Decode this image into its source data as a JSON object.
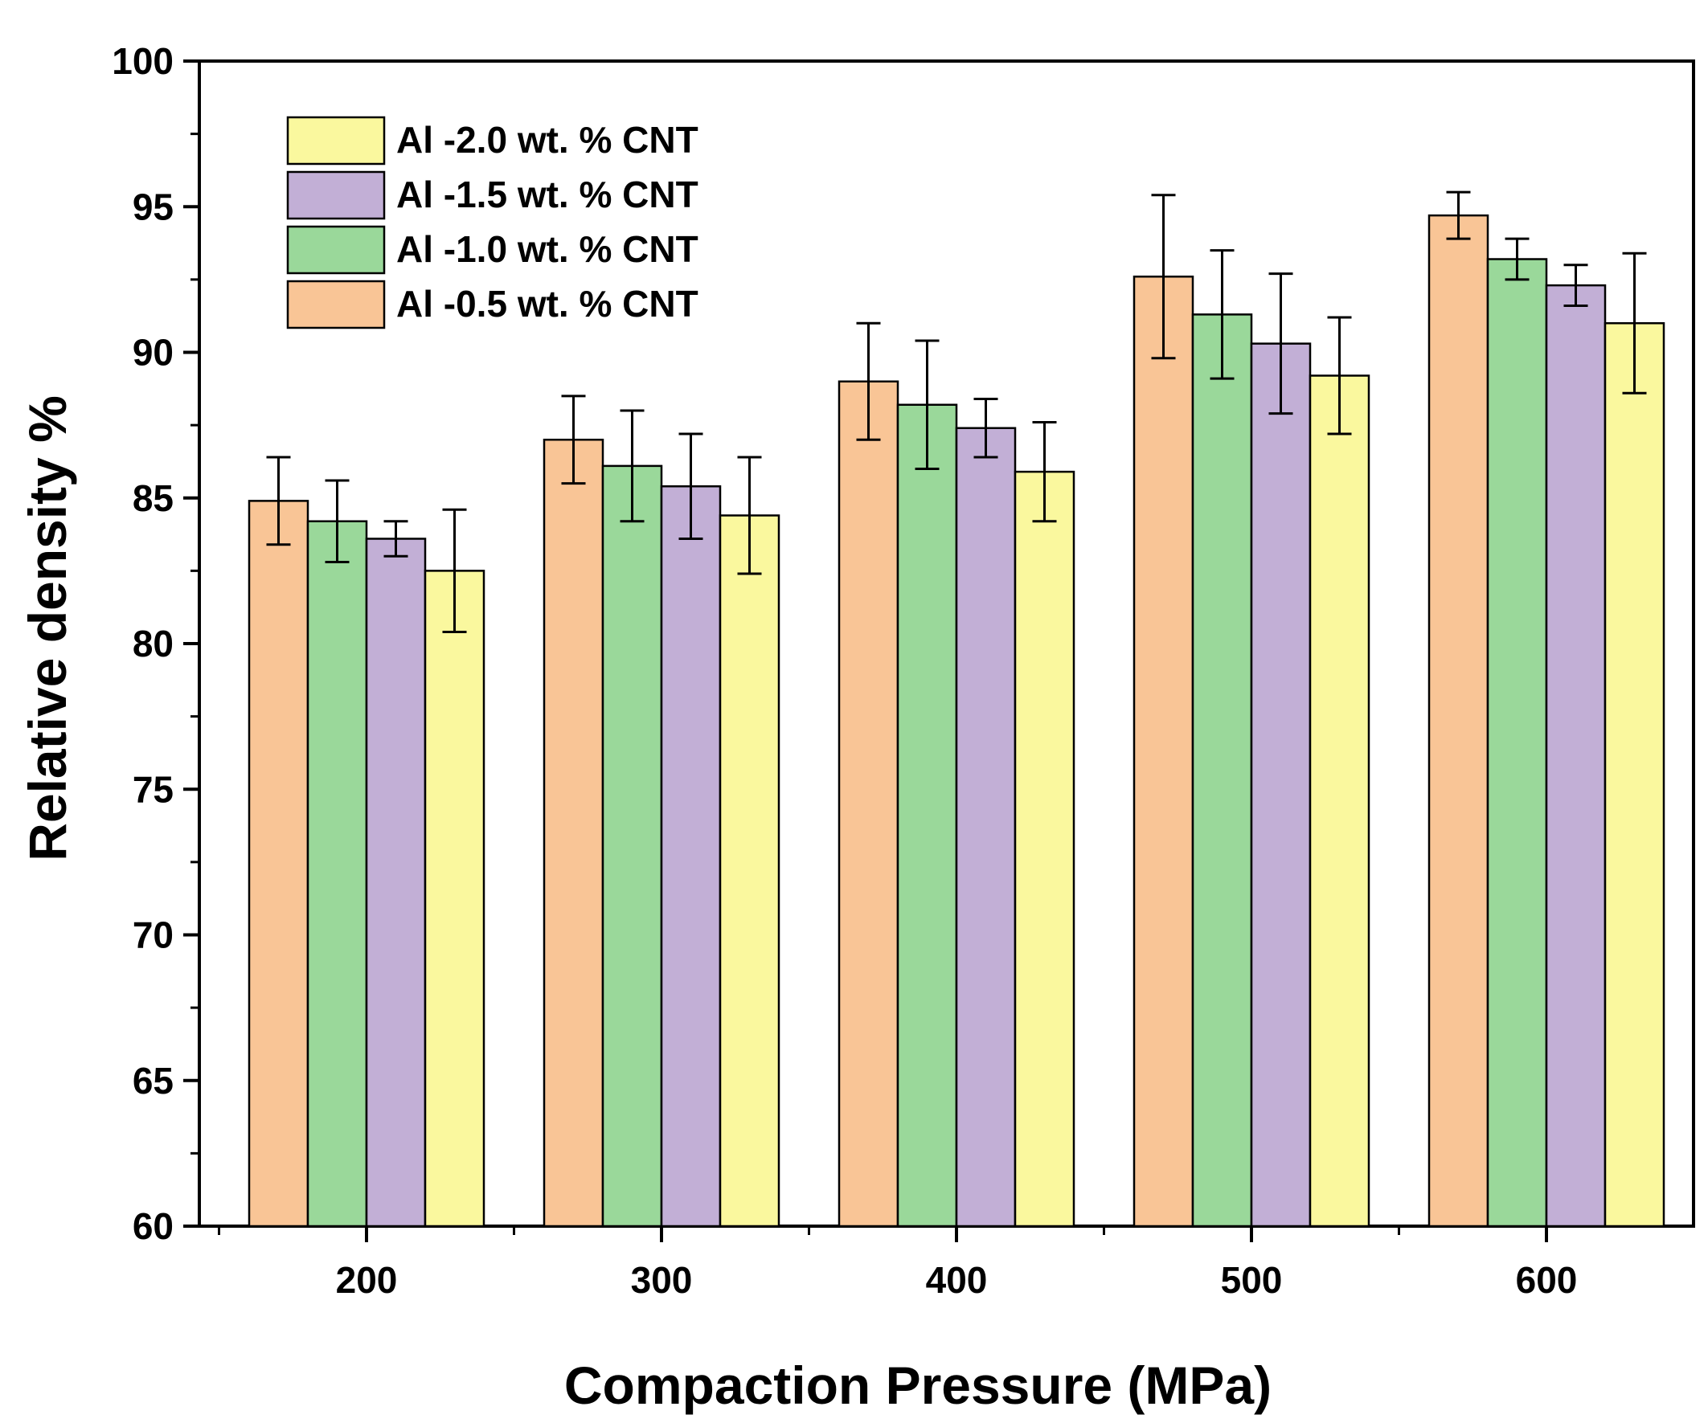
{
  "chart_data": {
    "type": "bar",
    "title": "",
    "xlabel": "Compaction Pressure (MPa)",
    "ylabel": "Relative density %",
    "categories": [
      "200",
      "300",
      "400",
      "500",
      "600"
    ],
    "ylim": [
      60,
      100
    ],
    "yticks": [
      60,
      65,
      70,
      75,
      80,
      85,
      90,
      95,
      100
    ],
    "grid": false,
    "legend_position": "top-left",
    "error_bars": true,
    "series": [
      {
        "name": "Al -0.5 wt. % CNT",
        "color": "#F9C596",
        "values": [
          84.9,
          87.0,
          89.0,
          92.6,
          94.7
        ],
        "errors": [
          1.5,
          1.5,
          2.0,
          2.8,
          0.8
        ]
      },
      {
        "name": "Al -1.0 wt. % CNT",
        "color": "#9AD89A",
        "values": [
          84.2,
          86.1,
          88.2,
          91.3,
          93.2
        ],
        "errors": [
          1.4,
          1.9,
          2.2,
          2.2,
          0.7
        ]
      },
      {
        "name": "Al -1.5 wt. % CNT",
        "color": "#C2AFD6",
        "values": [
          83.6,
          85.4,
          87.4,
          90.3,
          92.3
        ],
        "errors": [
          0.6,
          1.8,
          1.0,
          2.4,
          0.7
        ]
      },
      {
        "name": "Al -2.0 wt. % CNT",
        "color": "#FAF89E",
        "values": [
          82.5,
          84.4,
          85.9,
          89.2,
          91.0
        ],
        "errors": [
          2.1,
          2.0,
          1.7,
          2.0,
          2.4
        ]
      }
    ],
    "legend_order": [
      3,
      2,
      1,
      0
    ]
  }
}
